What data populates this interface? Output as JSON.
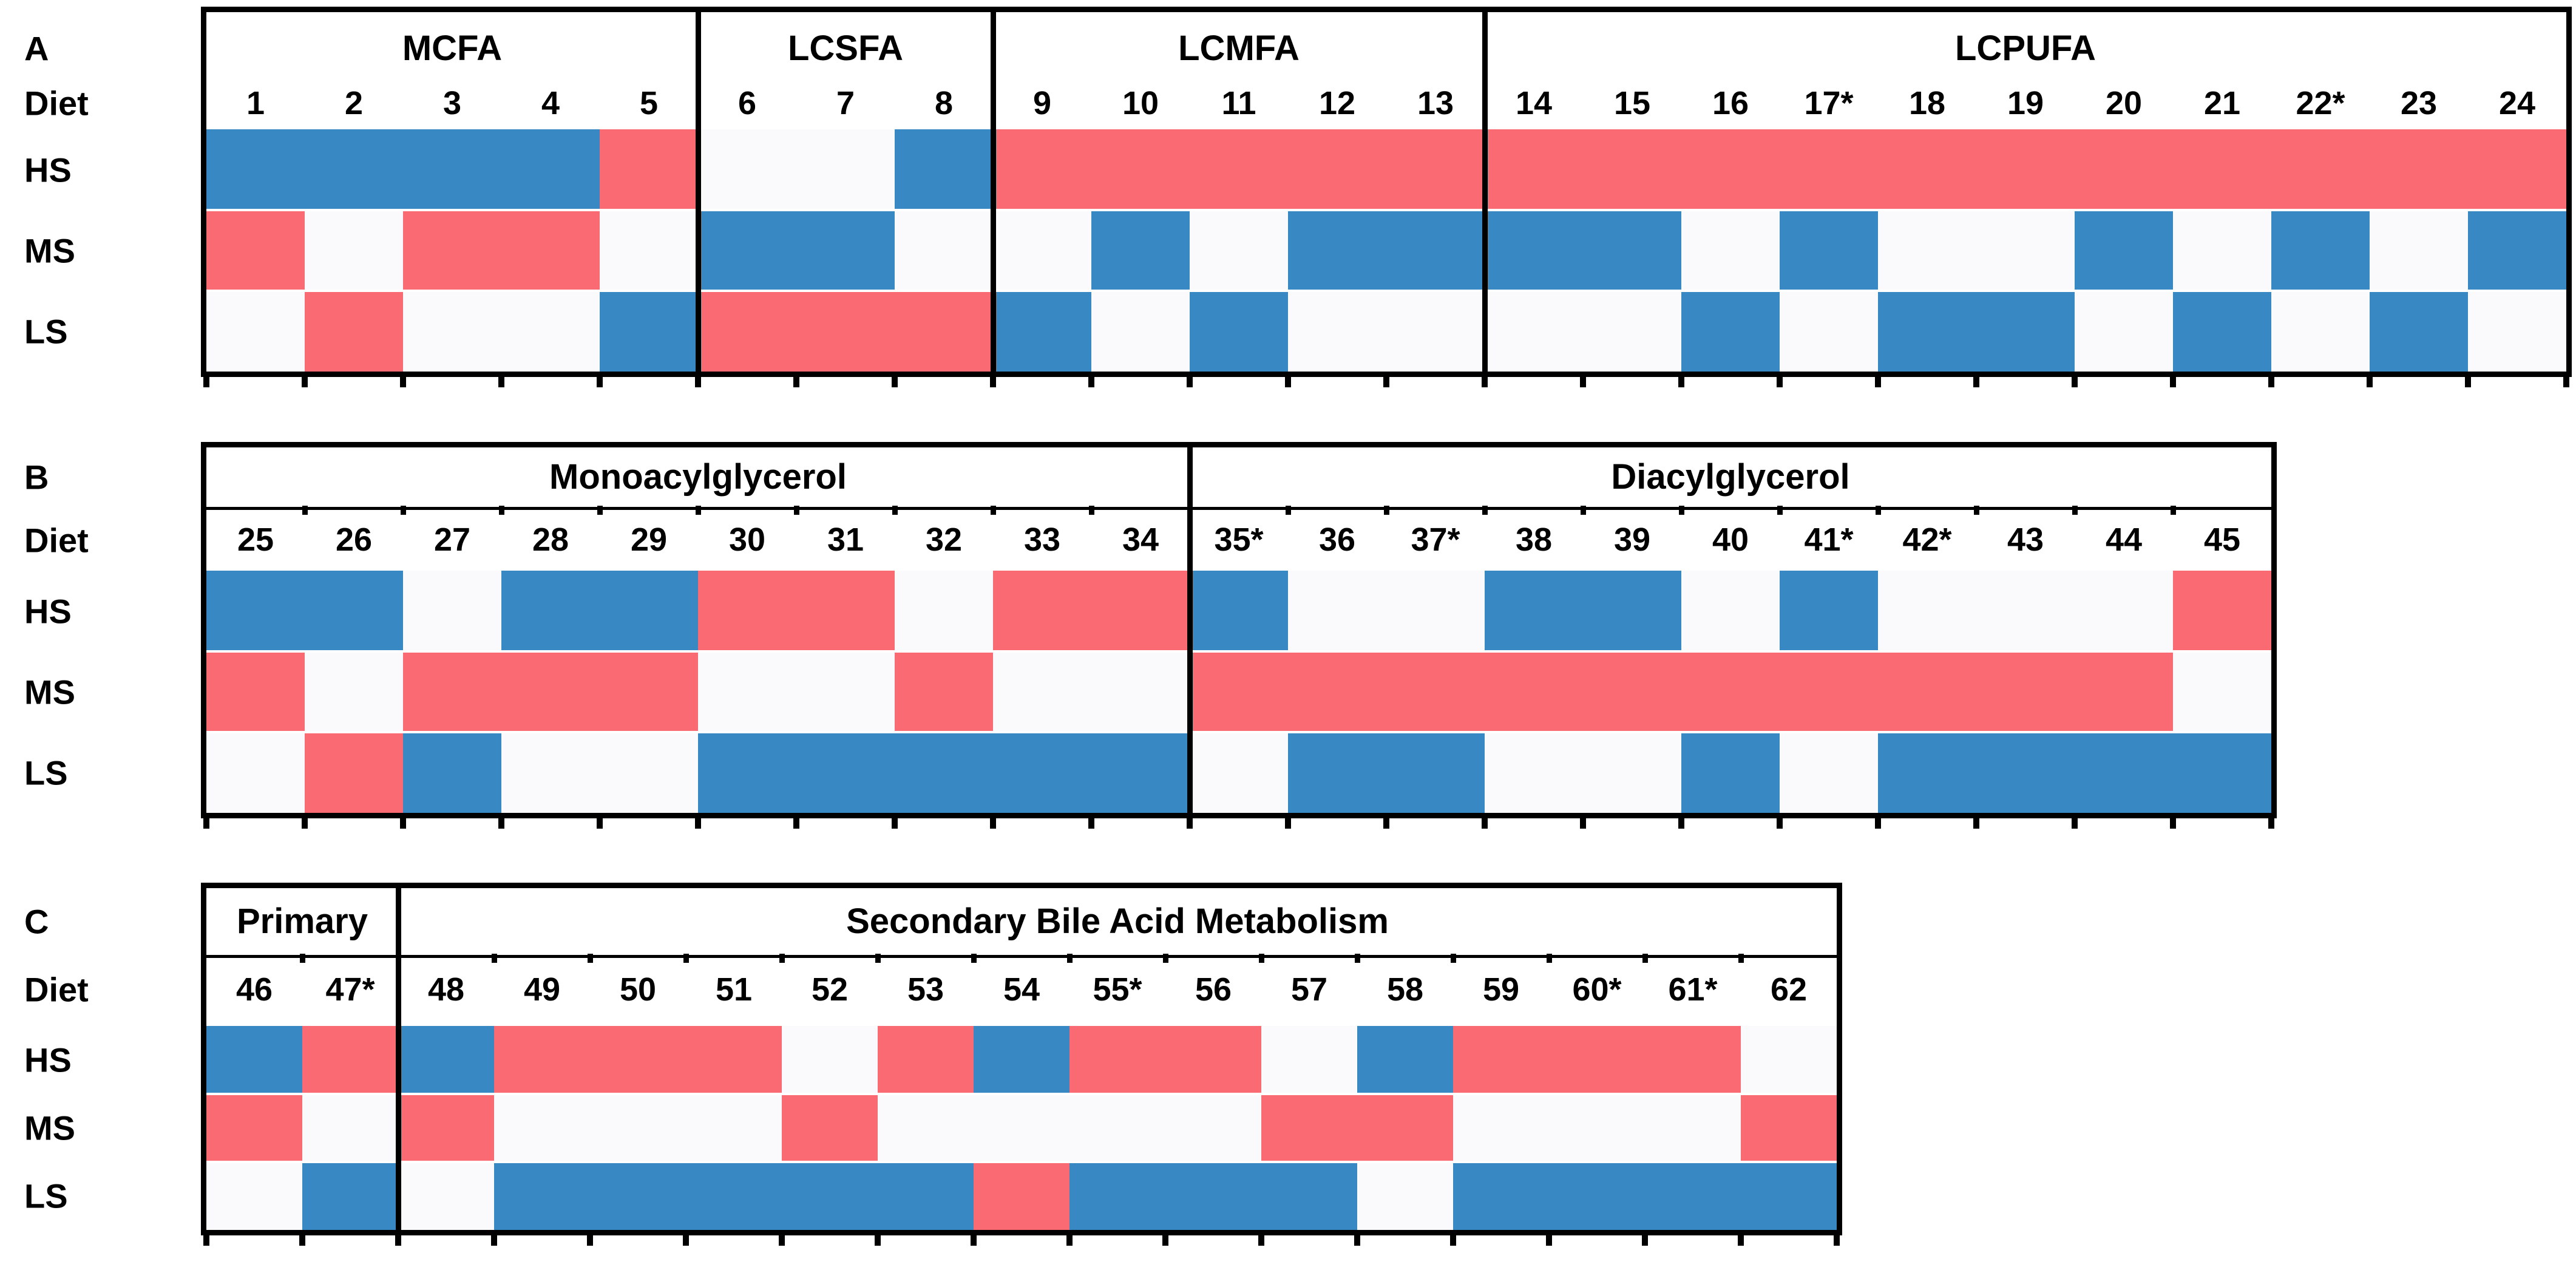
{
  "chart_data": {
    "type": "heatmap",
    "diet_axis_label": "Diet",
    "colors": {
      "red": "#fa6a72",
      "blue": "#3888c4",
      "white": "#faf9fc"
    },
    "panels": [
      {
        "panel_label": "A",
        "diet_axis_label": "Diet",
        "row_labels": [
          "HS",
          "MS",
          "LS"
        ],
        "sections": [
          {
            "name": "MCFA",
            "diets": [
              "1",
              "2",
              "3",
              "4",
              "5"
            ]
          },
          {
            "name": "LCSFA",
            "diets": [
              "6",
              "7",
              "8"
            ]
          },
          {
            "name": "LCMFA",
            "diets": [
              "9",
              "10",
              "11",
              "12",
              "13"
            ]
          },
          {
            "name": "LCPUFA",
            "diets": [
              "14",
              "15",
              "16",
              "17*",
              "18",
              "19",
              "20",
              "21",
              "22*",
              "23",
              "24"
            ]
          }
        ],
        "cells": {
          "HS": [
            "blue",
            "blue",
            "blue",
            "blue",
            "red",
            "white",
            "white",
            "blue",
            "red",
            "red",
            "red",
            "red",
            "red",
            "red",
            "red",
            "red",
            "red",
            "red",
            "red",
            "red",
            "red",
            "red",
            "red",
            "red"
          ],
          "MS": [
            "red",
            "white",
            "red",
            "red",
            "white",
            "blue",
            "blue",
            "white",
            "white",
            "blue",
            "white",
            "blue",
            "blue",
            "blue",
            "blue",
            "white",
            "blue",
            "white",
            "white",
            "blue",
            "white",
            "blue",
            "white",
            "blue"
          ],
          "LS": [
            "white",
            "red",
            "white",
            "white",
            "blue",
            "red",
            "red",
            "red",
            "blue",
            "white",
            "blue",
            "white",
            "white",
            "white",
            "white",
            "blue",
            "white",
            "blue",
            "blue",
            "white",
            "blue",
            "white",
            "blue",
            "white"
          ]
        }
      },
      {
        "panel_label": "B",
        "diet_axis_label": "Diet",
        "row_labels": [
          "HS",
          "MS",
          "LS"
        ],
        "sections": [
          {
            "name": "Monoacylglycerol",
            "diets": [
              "25",
              "26",
              "27",
              "28",
              "29",
              "30",
              "31",
              "32",
              "33",
              "34"
            ]
          },
          {
            "name": "Diacylglycerol",
            "diets": [
              "35*",
              "36",
              "37*",
              "38",
              "39",
              "40",
              "41*",
              "42*",
              "43",
              "44",
              "45"
            ]
          }
        ],
        "cells": {
          "HS": [
            "blue",
            "blue",
            "white",
            "blue",
            "blue",
            "red",
            "red",
            "white",
            "red",
            "red",
            "blue",
            "white",
            "white",
            "blue",
            "blue",
            "white",
            "blue",
            "white",
            "white",
            "white",
            "red"
          ],
          "MS": [
            "red",
            "white",
            "red",
            "red",
            "red",
            "white",
            "white",
            "red",
            "white",
            "white",
            "red",
            "red",
            "red",
            "red",
            "red",
            "red",
            "red",
            "red",
            "red",
            "red",
            "white"
          ],
          "LS": [
            "white",
            "red",
            "blue",
            "white",
            "white",
            "blue",
            "blue",
            "blue",
            "blue",
            "blue",
            "white",
            "blue",
            "blue",
            "white",
            "white",
            "blue",
            "white",
            "blue",
            "blue",
            "blue",
            "blue"
          ]
        }
      },
      {
        "panel_label": "C",
        "diet_axis_label": "Diet",
        "row_labels": [
          "HS",
          "MS",
          "LS"
        ],
        "sections": [
          {
            "name": "Primary",
            "diets": [
              "46",
              "47*"
            ]
          },
          {
            "name": "Secondary Bile Acid Metabolism",
            "diets": [
              "48",
              "49",
              "50",
              "51",
              "52",
              "53",
              "54",
              "55*",
              "56",
              "57",
              "58",
              "59",
              "60*",
              "61*",
              "62"
            ]
          }
        ],
        "cells": {
          "HS": [
            "blue",
            "red",
            "blue",
            "red",
            "red",
            "red",
            "white",
            "red",
            "blue",
            "red",
            "red",
            "white",
            "blue",
            "red",
            "red",
            "red",
            "white"
          ],
          "MS": [
            "red",
            "white",
            "red",
            "white",
            "white",
            "white",
            "red",
            "white",
            "white",
            "white",
            "white",
            "red",
            "red",
            "white",
            "white",
            "white",
            "red"
          ],
          "LS": [
            "white",
            "blue",
            "white",
            "blue",
            "blue",
            "blue",
            "blue",
            "blue",
            "red",
            "blue",
            "blue",
            "blue",
            "white",
            "blue",
            "blue",
            "blue",
            "blue"
          ]
        }
      }
    ]
  }
}
